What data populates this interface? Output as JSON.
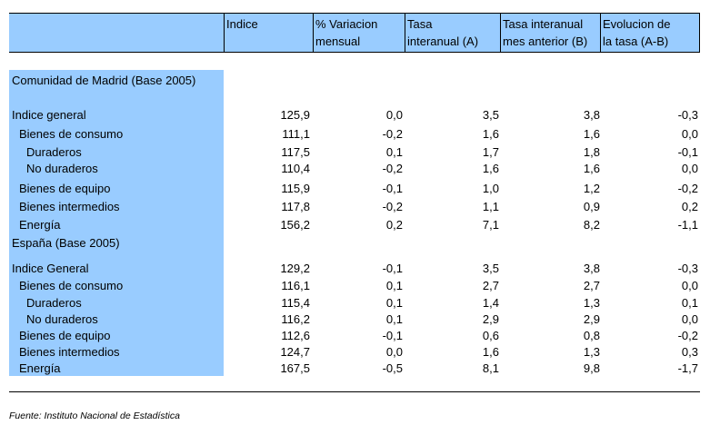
{
  "header": {
    "columns": [
      {
        "l1": "Indice",
        "l2": ""
      },
      {
        "l1": "% Variacion",
        "l2": "mensual"
      },
      {
        "l1": "Tasa",
        "l2": "interanual (A)"
      },
      {
        "l1": "Tasa interanual",
        "l2": "mes anterior (B)"
      },
      {
        "l1": "Evolucion de",
        "l2": "la tasa (A-B)"
      }
    ]
  },
  "sections": [
    {
      "title": "Comunidad de Madrid (Base 2005)",
      "rows": [
        {
          "label": "Indice general",
          "indent": 0,
          "values": [
            "125,9",
            "0,0",
            "3,5",
            "3,8",
            "-0,3"
          ]
        },
        {
          "label": "Bienes de consumo",
          "indent": 1,
          "values": [
            "111,1",
            "-0,2",
            "1,6",
            "1,6",
            "0,0"
          ]
        },
        {
          "label": "Duraderos",
          "indent": 2,
          "values": [
            "117,5",
            "0,1",
            "1,7",
            "1,8",
            "-0,1"
          ]
        },
        {
          "label": "No duraderos",
          "indent": 2,
          "values": [
            "110,4",
            "-0,2",
            "1,6",
            "1,6",
            "0,0"
          ]
        },
        {
          "label": "Bienes de equipo",
          "indent": 1,
          "values": [
            "115,9",
            "-0,1",
            "1,0",
            "1,2",
            "-0,2"
          ]
        },
        {
          "label": "Bienes intermedios",
          "indent": 1,
          "values": [
            "117,8",
            "-0,2",
            "1,1",
            "0,9",
            "0,2"
          ]
        },
        {
          "label": "Energía",
          "indent": 1,
          "values": [
            "156,2",
            "0,2",
            "7,1",
            "8,2",
            "-1,1"
          ]
        }
      ]
    },
    {
      "title": "España (Base 2005)",
      "rows": [
        {
          "label": "Indice General",
          "indent": 0,
          "values": [
            "129,2",
            "-0,1",
            "3,5",
            "3,8",
            "-0,3"
          ]
        },
        {
          "label": "Bienes de consumo",
          "indent": 1,
          "values": [
            "116,1",
            "0,1",
            "2,7",
            "2,7",
            "0,0"
          ]
        },
        {
          "label": "Duraderos",
          "indent": 2,
          "values": [
            "115,4",
            "0,1",
            "1,4",
            "1,3",
            "0,1"
          ]
        },
        {
          "label": "No duraderos",
          "indent": 2,
          "values": [
            "116,2",
            "0,1",
            "2,9",
            "2,9",
            "0,0"
          ]
        },
        {
          "label": "Bienes de equipo",
          "indent": 1,
          "values": [
            "112,6",
            "-0,1",
            "0,6",
            "0,8",
            "-0,2"
          ]
        },
        {
          "label": "Bienes intermedios",
          "indent": 1,
          "values": [
            "124,7",
            "0,0",
            "1,6",
            "1,3",
            "0,3"
          ]
        },
        {
          "label": "Energía",
          "indent": 1,
          "values": [
            "167,5",
            "-0,5",
            "8,1",
            "9,8",
            "-1,7"
          ]
        }
      ]
    }
  ],
  "source": "Fuente: Instituto Nacional de Estadística",
  "colors": {
    "header_bg": "#99ccff",
    "sidebar_bg": "#99ccff"
  }
}
